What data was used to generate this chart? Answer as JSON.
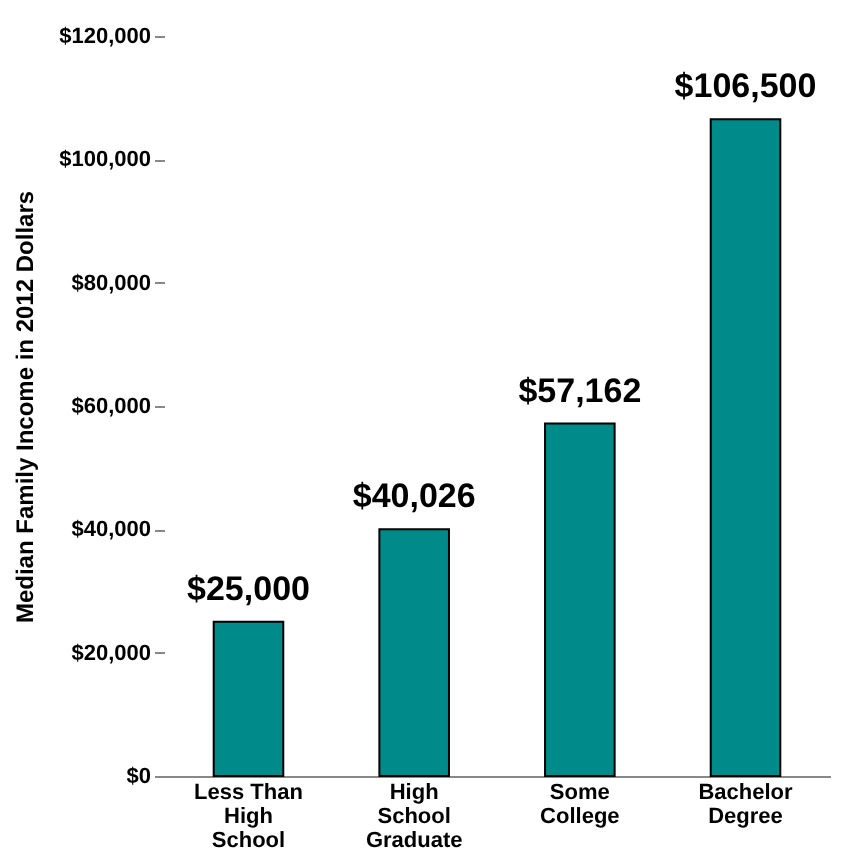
{
  "chart_data": {
    "type": "bar",
    "ylabel": "Median Family Income in 2012 Dollars",
    "categories": [
      "Less Than High School",
      "High School Graduate",
      "Some College",
      "Bachelor Degree"
    ],
    "values": [
      25000,
      40026,
      57162,
      106500
    ],
    "value_labels": [
      "$25,000",
      "$40,026",
      "$57,162",
      "$106,500"
    ],
    "color": "#008b8b",
    "ylim": [
      0,
      120000
    ],
    "yticks": [
      {
        "value": 0,
        "label": "$0"
      },
      {
        "value": 20000,
        "label": "$20,000"
      },
      {
        "value": 40000,
        "label": "$40,000"
      },
      {
        "value": 60000,
        "label": "$60,000"
      },
      {
        "value": 80000,
        "label": "$80,000"
      },
      {
        "value": 100000,
        "label": "$100,000"
      },
      {
        "value": 120000,
        "label": "$120,000"
      }
    ],
    "grid": false
  }
}
